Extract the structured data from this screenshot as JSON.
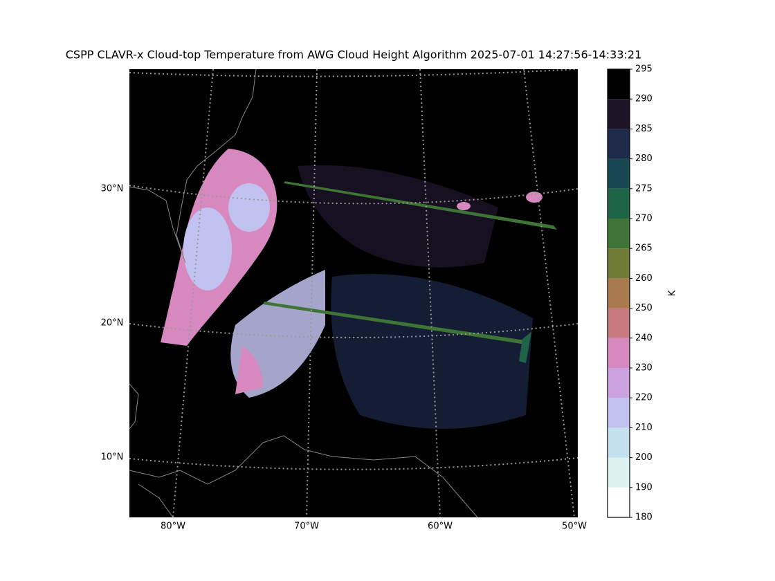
{
  "title": "CSPP CLAVR-x Cloud-top Temperature from AWG Cloud Height Algorithm 2025-07-01 14:27:56-14:33:21",
  "map": {
    "lat_labels": [
      "30°N",
      "20°N",
      "10°N"
    ],
    "lon_labels": [
      "80°W",
      "70°W",
      "60°W",
      "50°W"
    ]
  },
  "colorbar": {
    "label": "K",
    "ticks": [
      180,
      190,
      200,
      210,
      220,
      230,
      240,
      250,
      260,
      265,
      270,
      275,
      280,
      285,
      290,
      295
    ],
    "colors": [
      "#ffffff",
      "#dff3ee",
      "#c5e0ef",
      "#c2c2f0",
      "#cda2e0",
      "#d688bf",
      "#c87a7e",
      "#a87a4e",
      "#6f7a35",
      "#3e7536",
      "#1e6547",
      "#174750",
      "#1d2a4a",
      "#1d1428",
      "#000000"
    ]
  }
}
